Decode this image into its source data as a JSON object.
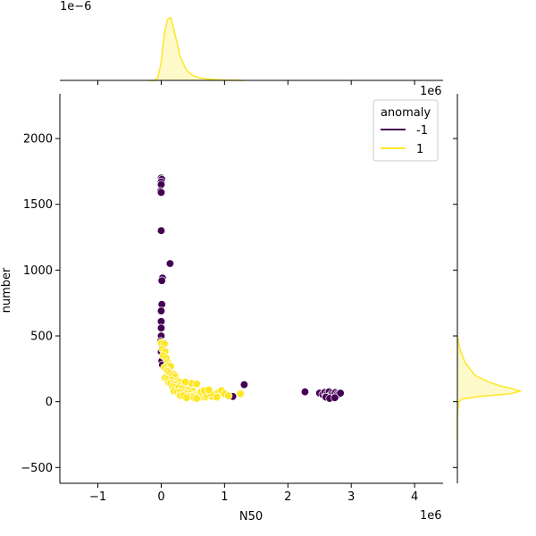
{
  "chart_data": {
    "type": "scatter",
    "variant": "jointplot",
    "xlabel": "N50",
    "ylabel": "number",
    "x_scale_label": "1e6",
    "y_marginal_scale_label": "1e6",
    "x_marginal_scale_label": "1e−6",
    "xlim": [
      -1.6,
      4.45
    ],
    "ylim": [
      -620,
      2340
    ],
    "x_ticks": [
      -1,
      0,
      1,
      2,
      3,
      4
    ],
    "x_tick_labels": [
      "−1",
      "0",
      "1",
      "2",
      "3",
      "4"
    ],
    "y_ticks": [
      -500,
      0,
      500,
      1000,
      1500,
      2000
    ],
    "y_tick_labels": [
      "−500",
      "0",
      "500",
      "1000",
      "1500",
      "2000"
    ],
    "grid": false,
    "legend": {
      "title": "anomaly",
      "placement": "top-right",
      "entries": [
        {
          "label": "-1",
          "color": "#440154"
        },
        {
          "label": "1",
          "color": "#fde725"
        }
      ]
    },
    "series": [
      {
        "name": "-1",
        "color": "#440154",
        "points": [
          [
            0.0,
            1700
          ],
          [
            0.01,
            1690
          ],
          [
            0.0,
            1670
          ],
          [
            0.0,
            1650
          ],
          [
            -0.01,
            1600
          ],
          [
            0.0,
            1590
          ],
          [
            0.0,
            1300
          ],
          [
            0.14,
            1050
          ],
          [
            0.02,
            940
          ],
          [
            0.01,
            920
          ],
          [
            0.01,
            740
          ],
          [
            0.0,
            690
          ],
          [
            0.0,
            610
          ],
          [
            0.0,
            560
          ],
          [
            0.0,
            500
          ],
          [
            -0.01,
            460
          ],
          [
            0.02,
            420
          ],
          [
            0.0,
            380
          ],
          [
            0.03,
            340
          ],
          [
            0.01,
            310
          ],
          [
            0.02,
            280
          ],
          [
            0.74,
            45
          ],
          [
            0.85,
            50
          ],
          [
            1.08,
            42
          ],
          [
            1.13,
            40
          ],
          [
            1.31,
            130
          ],
          [
            2.27,
            75
          ],
          [
            2.5,
            65
          ],
          [
            2.55,
            55
          ],
          [
            2.58,
            70
          ],
          [
            2.6,
            45
          ],
          [
            2.62,
            60
          ],
          [
            2.63,
            30
          ],
          [
            2.65,
            75
          ],
          [
            2.67,
            50
          ],
          [
            2.68,
            40
          ],
          [
            2.7,
            65
          ],
          [
            2.72,
            55
          ],
          [
            2.73,
            35
          ],
          [
            2.75,
            70
          ],
          [
            2.77,
            45
          ],
          [
            2.78,
            60
          ],
          [
            2.8,
            55
          ],
          [
            2.83,
            65
          ],
          [
            2.6,
            35
          ],
          [
            2.66,
            25
          ],
          [
            2.74,
            30
          ]
        ]
      },
      {
        "name": "1",
        "color": "#fde725",
        "points": [
          [
            0.0,
            450
          ],
          [
            0.05,
            440
          ],
          [
            0.02,
            400
          ],
          [
            0.06,
            380
          ],
          [
            0.03,
            350
          ],
          [
            0.08,
            330
          ],
          [
            0.1,
            300
          ],
          [
            0.12,
            280
          ],
          [
            0.15,
            270
          ],
          [
            0.05,
            260
          ],
          [
            0.09,
            240
          ],
          [
            0.11,
            230
          ],
          [
            0.14,
            220
          ],
          [
            0.2,
            210
          ],
          [
            0.18,
            200
          ],
          [
            0.22,
            190
          ],
          [
            0.06,
            180
          ],
          [
            0.1,
            170
          ],
          [
            0.16,
            165
          ],
          [
            0.25,
            160
          ],
          [
            0.28,
            150
          ],
          [
            0.12,
            145
          ],
          [
            0.15,
            140
          ],
          [
            0.2,
            135
          ],
          [
            0.24,
            130
          ],
          [
            0.3,
            125
          ],
          [
            0.35,
            120
          ],
          [
            0.18,
            115
          ],
          [
            0.22,
            110
          ],
          [
            0.27,
            105
          ],
          [
            0.33,
            100
          ],
          [
            0.38,
            95
          ],
          [
            0.42,
            90
          ],
          [
            0.45,
            85
          ],
          [
            0.5,
            80
          ],
          [
            0.2,
            80
          ],
          [
            0.26,
            75
          ],
          [
            0.3,
            70
          ],
          [
            0.36,
            65
          ],
          [
            0.4,
            60
          ],
          [
            0.46,
            60
          ],
          [
            0.52,
            55
          ],
          [
            0.55,
            50
          ],
          [
            0.6,
            50
          ],
          [
            0.3,
            45
          ],
          [
            0.35,
            45
          ],
          [
            0.45,
            40
          ],
          [
            0.5,
            40
          ],
          [
            0.62,
            40
          ],
          [
            0.66,
            35
          ],
          [
            0.7,
            35
          ],
          [
            0.4,
            30
          ],
          [
            0.52,
            30
          ],
          [
            0.56,
            25
          ],
          [
            0.8,
            40
          ],
          [
            0.85,
            55
          ],
          [
            0.9,
            70
          ],
          [
            0.95,
            85
          ],
          [
            1.0,
            60
          ],
          [
            1.06,
            45
          ],
          [
            1.25,
            60
          ],
          [
            0.48,
            140
          ],
          [
            0.56,
            135
          ],
          [
            0.38,
            150
          ],
          [
            0.72,
            50
          ],
          [
            0.78,
            65
          ],
          [
            0.88,
            35
          ],
          [
            0.63,
            75
          ],
          [
            0.68,
            85
          ],
          [
            0.75,
            90
          ]
        ]
      }
    ],
    "marginal_x": {
      "series": "1",
      "color": "#fde725",
      "x": [
        -0.2,
        -0.1,
        -0.05,
        0.0,
        0.05,
        0.1,
        0.15,
        0.2,
        0.3,
        0.4,
        0.5,
        0.6,
        0.8,
        1.0,
        1.3
      ],
      "density": [
        0.0,
        0.0,
        0.05,
        0.3,
        0.75,
        0.97,
        1.0,
        0.82,
        0.38,
        0.16,
        0.08,
        0.04,
        0.015,
        0.005,
        0.0
      ]
    },
    "marginal_y": {
      "series": "1",
      "color": "#fde725",
      "y": [
        -300,
        -100,
        0,
        20,
        40,
        60,
        80,
        100,
        120,
        150,
        200,
        300,
        400,
        500
      ],
      "density": [
        0.0,
        0.0,
        0.02,
        0.08,
        0.35,
        0.85,
        1.0,
        0.87,
        0.68,
        0.5,
        0.28,
        0.12,
        0.04,
        0.0
      ]
    }
  }
}
